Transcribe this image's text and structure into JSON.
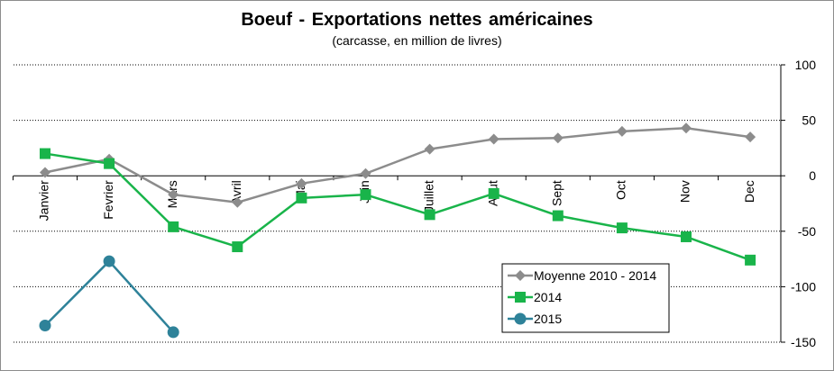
{
  "chart_data": {
    "type": "line",
    "title": "Boeuf  - Exportations  nettes  américaines",
    "subtitle": "(carcasse, en million de livres)",
    "categories": [
      "Janvier",
      "Fevrier",
      "Mars",
      "Avril",
      "Mai",
      "Juin",
      "Juillet",
      "Aout",
      "Sept",
      "Oct",
      "Nov",
      "Dec"
    ],
    "y_ticks": [
      "100",
      "50",
      "0",
      "-50",
      "-100",
      "-150"
    ],
    "ylim": [
      -150,
      100
    ],
    "grid": "horizontal dotted",
    "legend_position": "bottom-right",
    "series": [
      {
        "name": "Moyenne 2010 - 2014",
        "color": "#8c8c8c",
        "marker": "diamond",
        "values": [
          3,
          15,
          -17,
          -24,
          -7,
          2,
          24,
          33,
          34,
          40,
          43,
          35
        ]
      },
      {
        "name": "2014",
        "color": "#19b44a",
        "marker": "square",
        "values": [
          20,
          11,
          -46,
          -64,
          -20,
          -17,
          -35,
          -16,
          -36,
          -47,
          -55,
          -76
        ]
      },
      {
        "name": "2015",
        "color": "#2e8299",
        "marker": "circle",
        "values": [
          -135,
          -77,
          -141,
          null,
          null,
          null,
          null,
          null,
          null,
          null,
          null,
          null
        ]
      }
    ]
  }
}
